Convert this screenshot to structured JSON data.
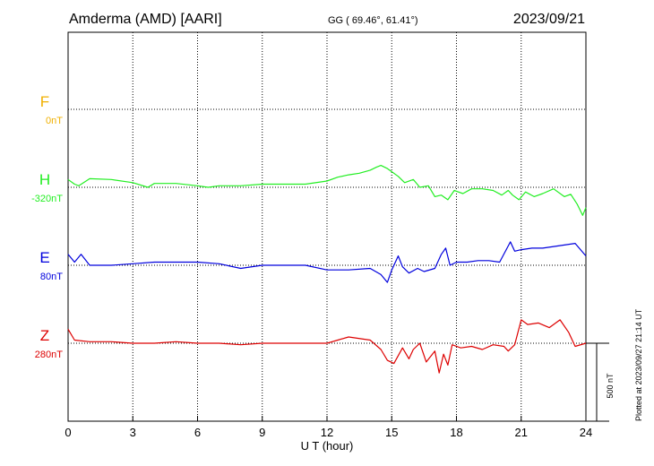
{
  "header": {
    "station": "Amderma (AMD)  [AARI]",
    "coords": "GG ( 69.46°,  61.41°)",
    "date": "2023/09/21"
  },
  "footer": {
    "plotted": "Plotted at 2023/09/27 21:14 UT"
  },
  "chart_data": {
    "type": "line",
    "xlabel": "U T (hour)",
    "xlim": [
      0,
      24
    ],
    "xticks": [
      0,
      3,
      6,
      9,
      12,
      15,
      18,
      21,
      24
    ],
    "scale_bar_label": "500 nT",
    "scale_bar_nT": 500,
    "grid": true,
    "series": [
      {
        "name": "F",
        "baseline_label": "0nT",
        "color": "#f0b000",
        "offset_nT": 1000,
        "x": [],
        "y": []
      },
      {
        "name": "H",
        "baseline_label": "-320nT",
        "color": "#22ee22",
        "offset_nT": 500,
        "x": [
          0,
          0.3,
          0.5,
          1,
          2,
          3,
          3.7,
          4,
          5,
          6,
          6.5,
          7,
          8,
          9,
          10,
          11,
          12,
          12.5,
          13,
          13.5,
          14,
          14.3,
          14.5,
          14.8,
          15,
          15.3,
          15.6,
          16,
          16.3,
          16.7,
          17,
          17.3,
          17.6,
          17.9,
          18.3,
          18.7,
          19.2,
          19.7,
          20.1,
          20.4,
          20.6,
          20.9,
          21.2,
          21.6,
          22,
          22.5,
          23,
          23.3,
          23.6,
          23.85,
          24
        ],
        "y": [
          50,
          20,
          10,
          55,
          50,
          30,
          0,
          25,
          25,
          10,
          0,
          10,
          10,
          20,
          20,
          20,
          40,
          65,
          80,
          90,
          110,
          130,
          140,
          120,
          100,
          70,
          30,
          50,
          0,
          10,
          -60,
          -50,
          -80,
          -20,
          -40,
          -10,
          -10,
          -20,
          -50,
          -20,
          -50,
          -80,
          -30,
          -60,
          -40,
          -10,
          -60,
          -45,
          -110,
          -180,
          -130
        ]
      },
      {
        "name": "E",
        "baseline_label": "80nT",
        "color": "#0000dd",
        "offset_nT": 0,
        "x": [
          0,
          0.3,
          0.6,
          1,
          2,
          3,
          4,
          5,
          6,
          7,
          8,
          9,
          10,
          11,
          12,
          13,
          14,
          14.5,
          14.8,
          15,
          15.3,
          15.5,
          15.8,
          16.2,
          16.5,
          17,
          17.3,
          17.5,
          17.7,
          18,
          18.5,
          19,
          19.5,
          20,
          20.5,
          20.7,
          21,
          21.5,
          22,
          22.5,
          23,
          23.5,
          24
        ],
        "y": [
          70,
          20,
          70,
          0,
          0,
          10,
          20,
          20,
          20,
          10,
          -20,
          0,
          0,
          0,
          -30,
          -30,
          -20,
          -60,
          -110,
          -30,
          60,
          -10,
          -50,
          -20,
          -40,
          -20,
          70,
          110,
          0,
          20,
          20,
          30,
          30,
          20,
          150,
          90,
          100,
          110,
          110,
          120,
          130,
          140,
          60
        ]
      },
      {
        "name": "Z",
        "baseline_label": "280nT",
        "color": "#dd0000",
        "offset_nT": -500,
        "x": [
          0,
          0.3,
          1,
          2,
          3,
          4,
          5,
          6,
          7,
          8,
          9,
          10,
          11,
          12,
          12.5,
          13,
          14,
          14.5,
          14.8,
          15.1,
          15.5,
          15.8,
          16,
          16.3,
          16.6,
          17,
          17.2,
          17.4,
          17.6,
          17.8,
          18.2,
          18.7,
          19.2,
          19.7,
          20.2,
          20.4,
          20.7,
          21,
          21.3,
          21.8,
          22.3,
          22.8,
          23.2,
          23.5,
          24
        ],
        "y": [
          90,
          20,
          10,
          10,
          0,
          0,
          10,
          0,
          0,
          -10,
          0,
          0,
          0,
          0,
          20,
          40,
          20,
          -40,
          -110,
          -130,
          -30,
          -100,
          -40,
          0,
          -120,
          -50,
          -190,
          -70,
          -140,
          -10,
          -30,
          -20,
          -40,
          -10,
          -20,
          -50,
          -10,
          150,
          120,
          130,
          100,
          150,
          70,
          -20,
          0
        ]
      }
    ]
  }
}
